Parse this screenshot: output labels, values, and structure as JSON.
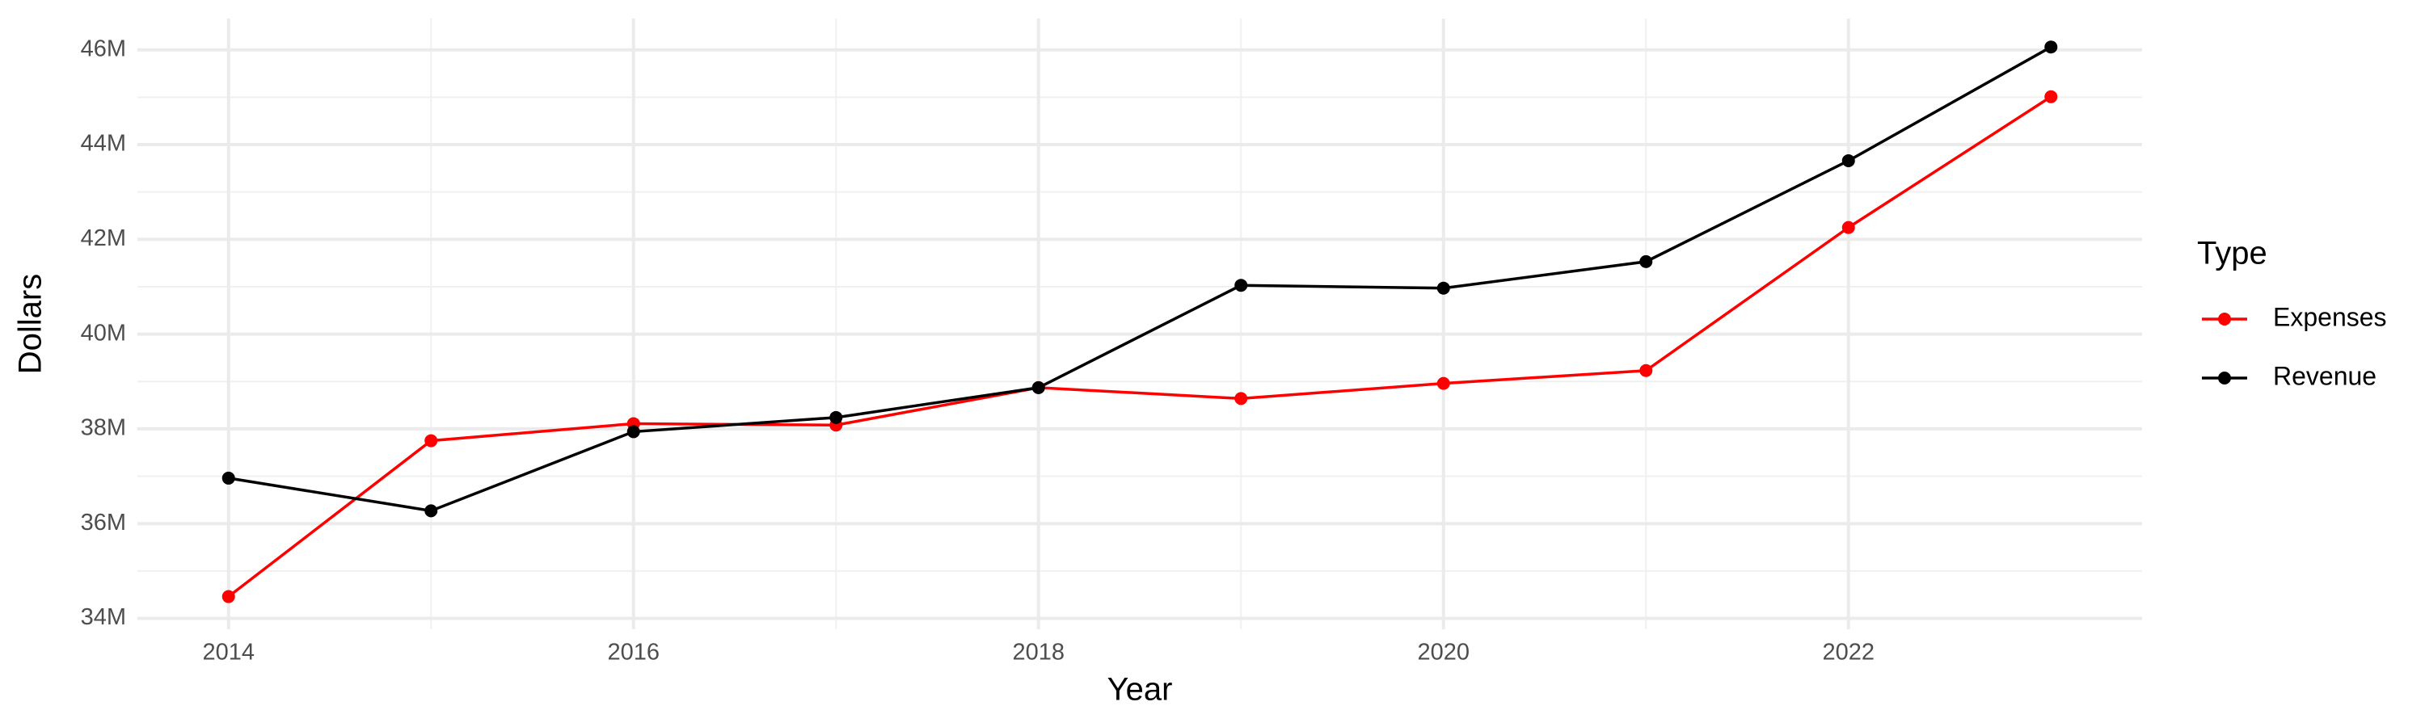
{
  "chart_data": {
    "type": "line",
    "x_label": "Year",
    "y_label": "Dollars",
    "x": [
      2014,
      2015,
      2016,
      2017,
      2018,
      2019,
      2020,
      2021,
      2022,
      2023
    ],
    "series": [
      {
        "name": "Expenses",
        "color": "#ff0000",
        "values": [
          34460000,
          37750000,
          38110000,
          38080000,
          38870000,
          38640000,
          38960000,
          39230000,
          42250000,
          45010000
        ]
      },
      {
        "name": "Revenue",
        "color": "#000000",
        "values": [
          36960000,
          36270000,
          37940000,
          38240000,
          38870000,
          41030000,
          40970000,
          41530000,
          43660000,
          46060000
        ]
      }
    ],
    "xlim": [
      2013.55,
      2023.45
    ],
    "xticks": [
      2014,
      2016,
      2018,
      2020,
      2022
    ],
    "ylim": [
      33770000,
      46660000
    ],
    "yticks": [
      {
        "value": 34000000,
        "label": "34M"
      },
      {
        "value": 36000000,
        "label": "36M"
      },
      {
        "value": 38000000,
        "label": "38M"
      },
      {
        "value": 40000000,
        "label": "40M"
      },
      {
        "value": 42000000,
        "label": "42M"
      },
      {
        "value": 44000000,
        "label": "44M"
      },
      {
        "value": 46000000,
        "label": "46M"
      }
    ],
    "legend_title": "Type",
    "legend_position": "right",
    "grid": true
  }
}
